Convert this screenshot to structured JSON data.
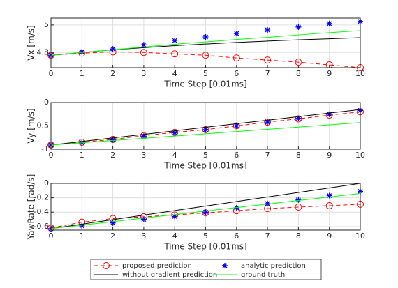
{
  "chart_data": [
    {
      "type": "line",
      "ylabel": "Vx [m/s]",
      "xlabel": "Time Step [0.01ms]",
      "x": [
        0,
        1,
        2,
        3,
        4,
        5,
        6,
        7,
        8,
        9,
        10
      ],
      "xlim": [
        0,
        10
      ],
      "xticks": [
        0,
        1,
        2,
        3,
        4,
        5,
        6,
        7,
        8,
        9,
        10
      ],
      "ylim": [
        4.69,
        5.05
      ],
      "yticks": [
        4.8,
        5
      ],
      "grid": true,
      "series": [
        {
          "name": "proposed prediction",
          "color": "#ff0000",
          "marker": "o",
          "dash": true,
          "values": [
            4.78,
            4.795,
            4.805,
            4.8,
            4.79,
            4.78,
            4.76,
            4.745,
            4.73,
            4.71,
            4.69
          ]
        },
        {
          "name": "analytic prediction",
          "color": "#0000ff",
          "marker": "*",
          "dash": false,
          "line": false,
          "values": [
            4.78,
            4.805,
            4.826,
            4.856,
            4.887,
            4.913,
            4.938,
            4.964,
            4.985,
            5.01,
            5.026
          ]
        },
        {
          "name": "without gradient prediction",
          "color": "#000000",
          "dash": false,
          "values": [
            4.78,
            4.8,
            4.82,
            4.835,
            4.85,
            4.862,
            4.873,
            4.883,
            4.892,
            4.9,
            4.908
          ]
        },
        {
          "name": "ground truth",
          "color": "#00ff00",
          "dash": false,
          "values": [
            4.78,
            4.8,
            4.82,
            4.84,
            4.86,
            4.877,
            4.895,
            4.91,
            4.928,
            4.944,
            4.959
          ]
        }
      ]
    },
    {
      "type": "line",
      "ylabel": "Vy [m/s]",
      "xlabel": "Time Step [0.01ms]",
      "x": [
        0,
        1,
        2,
        3,
        4,
        5,
        6,
        7,
        8,
        9,
        10
      ],
      "xlim": [
        0,
        10
      ],
      "xticks": [
        0,
        1,
        2,
        3,
        4,
        5,
        6,
        7,
        8,
        9,
        10
      ],
      "ylim": [
        -1,
        0
      ],
      "yticks": [
        -1,
        -0.5,
        0
      ],
      "grid": true,
      "series": [
        {
          "color": "#ff0000",
          "marker": "o",
          "dash": true,
          "values": [
            -0.91,
            -0.85,
            -0.79,
            -0.71,
            -0.64,
            -0.58,
            -0.5,
            -0.42,
            -0.35,
            -0.27,
            -0.2
          ]
        },
        {
          "color": "#0000ff",
          "marker": "*",
          "dash": false,
          "line": false,
          "values": [
            -0.91,
            -0.86,
            -0.8,
            -0.72,
            -0.65,
            -0.58,
            -0.5,
            -0.42,
            -0.34,
            -0.25,
            -0.17
          ]
        },
        {
          "color": "#000000",
          "dash": false,
          "values": [
            -0.91,
            -0.834,
            -0.758,
            -0.682,
            -0.606,
            -0.53,
            -0.454,
            -0.378,
            -0.302,
            -0.226,
            -0.15
          ]
        },
        {
          "color": "#00ff00",
          "dash": false,
          "values": [
            -0.91,
            -0.862,
            -0.814,
            -0.766,
            -0.718,
            -0.67,
            -0.622,
            -0.574,
            -0.526,
            -0.478,
            -0.43
          ]
        }
      ]
    },
    {
      "type": "line",
      "ylabel": "YawRate [rad/s]",
      "xlabel": "Time Step [0.01ms]",
      "x": [
        0,
        1,
        2,
        3,
        4,
        5,
        6,
        7,
        8,
        9,
        10
      ],
      "xlim": [
        0,
        10
      ],
      "xticks": [
        0,
        1,
        2,
        3,
        4,
        5,
        6,
        7,
        8,
        9,
        10
      ],
      "ylim": [
        -0.65,
        0
      ],
      "yticks": [
        -0.6,
        -0.4,
        -0.2,
        0
      ],
      "grid": true,
      "series": [
        {
          "color": "#ff0000",
          "marker": "o",
          "dash": true,
          "values": [
            -0.62,
            -0.54,
            -0.49,
            -0.465,
            -0.44,
            -0.41,
            -0.38,
            -0.35,
            -0.33,
            -0.31,
            -0.29
          ]
        },
        {
          "color": "#0000ff",
          "marker": "*",
          "dash": false,
          "line": false,
          "values": [
            -0.63,
            -0.59,
            -0.55,
            -0.5,
            -0.46,
            -0.4,
            -0.34,
            -0.28,
            -0.23,
            -0.17,
            -0.11
          ]
        },
        {
          "color": "#000000",
          "dash": false,
          "values": [
            -0.63,
            -0.567,
            -0.504,
            -0.441,
            -0.378,
            -0.315,
            -0.252,
            -0.189,
            -0.126,
            -0.063,
            0
          ]
        },
        {
          "color": "#00ff00",
          "dash": false,
          "values": [
            -0.63,
            -0.581,
            -0.532,
            -0.483,
            -0.434,
            -0.385,
            -0.336,
            -0.287,
            -0.238,
            -0.189,
            -0.14
          ]
        }
      ]
    }
  ]
}
